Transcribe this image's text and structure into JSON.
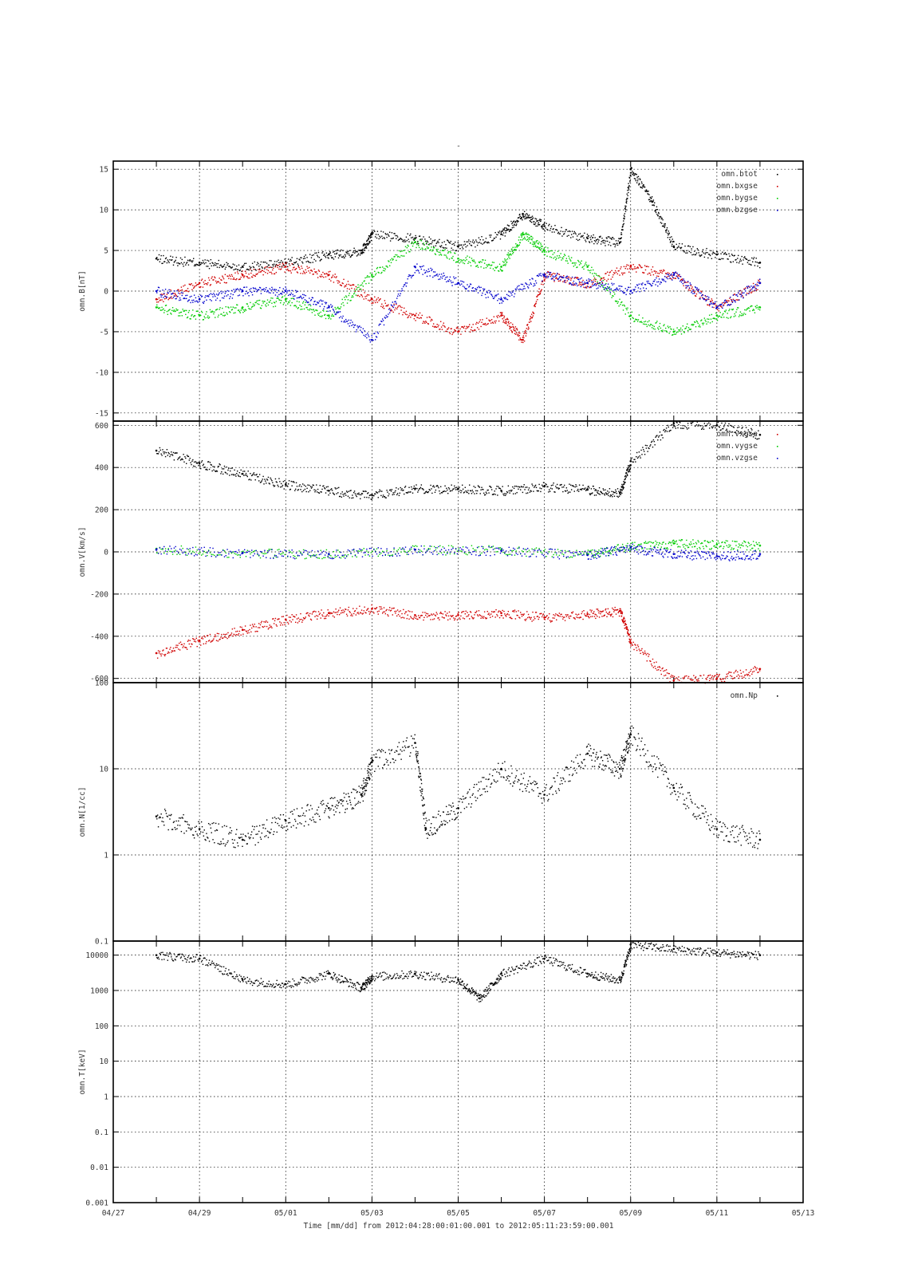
{
  "title": "-",
  "footer": {
    "label": "Time [mm/dd]  from 2012:04:28:00:01:00.001  to  2012:05:11:23:59:00.001"
  },
  "colors": {
    "black": "#000000",
    "red": "#d00000",
    "green": "#00cc00",
    "blue": "#0000cc"
  },
  "chart_data": [
    {
      "type": "scatter",
      "ylabel": "omn.B[nT]",
      "ylim": [
        -16,
        16
      ],
      "yscale": "linear",
      "x_range": [
        "04/27",
        "05/13"
      ],
      "x_ticklabels": [
        "04/27",
        "04/29",
        "05/01",
        "05/03",
        "05/05",
        "05/07",
        "05/09",
        "05/11",
        "05/13"
      ],
      "y_ticks": [
        15,
        10,
        5,
        0,
        -5,
        -10,
        -15
      ],
      "y_ticklabels": [
        "15",
        "10",
        "5",
        "0",
        "-5",
        "-10",
        "-15"
      ],
      "grid": true,
      "legend_position": "top-right",
      "series": [
        {
          "name": "omn.btot",
          "color": "#000000",
          "x": [
            "04/28",
            "04/29",
            "04/30",
            "05/01",
            "05/02",
            "05/02 18:00",
            "05/03",
            "05/04",
            "05/05",
            "05/06",
            "05/06 12:00",
            "05/07",
            "05/08",
            "05/08 18:00",
            "05/09",
            "05/09 12:00",
            "05/10",
            "05/11",
            "05/12"
          ],
          "y": [
            4,
            3.5,
            3,
            3.5,
            4.5,
            5,
            7,
            6.5,
            5.5,
            7,
            9.5,
            8,
            6.5,
            6,
            15,
            11,
            5.5,
            4.5,
            3.5
          ]
        },
        {
          "name": "omn.bxgse",
          "color": "#d00000",
          "x": [
            "04/28",
            "04/29",
            "04/30",
            "05/01",
            "05/02",
            "05/03",
            "05/04",
            "05/05",
            "05/06",
            "05/06 12:00",
            "05/07",
            "05/08",
            "05/09",
            "05/10",
            "05/11",
            "05/12"
          ],
          "y": [
            -1,
            1,
            2,
            3,
            2,
            -1,
            -3,
            -5,
            -3,
            -6,
            2,
            1,
            3,
            2,
            -2,
            1
          ]
        },
        {
          "name": "omn.bygse",
          "color": "#00cc00",
          "x": [
            "04/28",
            "04/29",
            "04/30",
            "05/01",
            "05/02",
            "05/03",
            "05/04",
            "05/05",
            "05/06",
            "05/06 12:00",
            "05/07",
            "05/08",
            "05/09",
            "05/10",
            "05/11",
            "05/12"
          ],
          "y": [
            -2,
            -3,
            -2,
            -1,
            -3,
            2,
            6,
            4,
            3,
            7,
            5,
            3,
            -3,
            -5,
            -3,
            -2
          ]
        },
        {
          "name": "omn.bzgse",
          "color": "#0000cc",
          "x": [
            "04/28",
            "04/29",
            "04/30",
            "05/01",
            "05/02",
            "05/03",
            "05/04",
            "05/05",
            "05/06",
            "05/07",
            "05/08",
            "05/09",
            "05/10",
            "05/11",
            "05/12"
          ],
          "y": [
            0,
            -1,
            0,
            0,
            -2,
            -6,
            3,
            1,
            -1,
            2,
            1,
            0,
            2,
            -2,
            1
          ]
        }
      ]
    },
    {
      "type": "scatter",
      "ylabel": "omn.V[km/s]",
      "ylim": [
        -620,
        620
      ],
      "yscale": "linear",
      "x_range": [
        "04/27",
        "05/13"
      ],
      "y_ticks": [
        600,
        400,
        200,
        0,
        -200,
        -400,
        -600
      ],
      "y_ticklabels": [
        "600",
        "400",
        "200",
        "0",
        "-200",
        "-400",
        "-600"
      ],
      "grid": true,
      "legend_position": "top-right",
      "series": [
        {
          "name": "omn.vxgse",
          "color": "#d00000",
          "x": [
            "04/28",
            "04/29",
            "04/30",
            "05/01",
            "05/02",
            "05/03",
            "05/04",
            "05/05",
            "05/06",
            "05/07",
            "05/08",
            "05/08 18:00",
            "05/09",
            "05/10",
            "05/11",
            "05/12"
          ],
          "y": [
            -480,
            -420,
            -370,
            -320,
            -290,
            -270,
            -300,
            -300,
            -290,
            -310,
            -295,
            -280,
            -430,
            -610,
            -600,
            -555
          ]
        },
        {
          "name": "omn.vygse",
          "color": "#00cc00",
          "x": [
            "04/28",
            "04/30",
            "05/02",
            "05/04",
            "05/06",
            "05/08",
            "05/09",
            "05/10",
            "05/11",
            "05/12"
          ],
          "y": [
            15,
            -5,
            -10,
            10,
            10,
            -10,
            25,
            40,
            35,
            30
          ]
        },
        {
          "name": "omn.vzgse",
          "color": "#0000cc",
          "x": [
            "04/28",
            "04/30",
            "05/02",
            "05/04",
            "05/06",
            "05/08",
            "05/09",
            "05/10",
            "05/11",
            "05/12"
          ],
          "y": [
            10,
            -5,
            -10,
            10,
            5,
            -15,
            20,
            -10,
            -20,
            -10
          ]
        },
        {
          "name": "",
          "color": "#000000",
          "x": [
            "04/28",
            "04/29",
            "04/30",
            "05/01",
            "05/02",
            "05/03",
            "05/04",
            "05/05",
            "05/06",
            "05/07",
            "05/08",
            "05/08 18:00",
            "05/09",
            "05/10",
            "05/11",
            "05/12"
          ],
          "y": [
            480,
            420,
            370,
            320,
            290,
            270,
            300,
            300,
            290,
            310,
            295,
            280,
            430,
            610,
            600,
            555
          ]
        }
      ],
      "legend_entries": [
        "omn.vxgse",
        "omn.vygse",
        "omn.vzgse"
      ]
    },
    {
      "type": "scatter",
      "ylabel": "omn.N[1/cc]",
      "ylim": [
        0.1,
        100
      ],
      "yscale": "log",
      "x_range": [
        "04/27",
        "05/13"
      ],
      "y_ticks": [
        100,
        10,
        1,
        0.1
      ],
      "y_ticklabels": [
        "100",
        "10",
        "1",
        "0.1"
      ],
      "grid": true,
      "legend_position": "top-right",
      "series": [
        {
          "name": "omn.Np",
          "color": "#000000",
          "x": [
            "04/28",
            "04/29",
            "04/30",
            "05/01",
            "05/02",
            "05/02 18:00",
            "05/03",
            "05/04",
            "05/04 06:00",
            "05/05",
            "05/06",
            "05/07",
            "05/08",
            "05/08 18:00",
            "05/09",
            "05/10",
            "05/11",
            "05/12"
          ],
          "y": [
            2.8,
            2,
            1.5,
            2.5,
            3.5,
            5,
            12,
            20,
            2,
            3.5,
            10,
            5,
            15,
            10,
            25,
            6,
            2,
            1.5
          ]
        }
      ]
    },
    {
      "type": "scatter",
      "ylabel": "omn.T[keV]",
      "ylim": [
        0.001,
        25000
      ],
      "yscale": "log",
      "x_range": [
        "04/27",
        "05/13"
      ],
      "y_ticks": [
        10000,
        1000,
        100,
        10,
        1,
        0.1,
        0.01,
        0.001
      ],
      "y_ticklabels": [
        "10000",
        "1000",
        "100",
        "10",
        "1",
        "0.1",
        "0.01",
        "0.001"
      ],
      "grid": true,
      "series": [
        {
          "name": "",
          "color": "#000000",
          "x": [
            "04/28",
            "04/29",
            "04/30",
            "05/01",
            "05/02",
            "05/02 18:00",
            "05/03",
            "05/04",
            "05/05",
            "05/05 12:00",
            "05/06",
            "05/07",
            "05/08",
            "05/08 18:00",
            "05/09",
            "05/10",
            "05/11",
            "05/12"
          ],
          "y": [
            10000,
            8000,
            2000,
            1500,
            3000,
            1200,
            2500,
            3000,
            2000,
            600,
            3000,
            8000,
            3000,
            2000,
            20000,
            15000,
            12000,
            10000
          ]
        }
      ]
    }
  ]
}
